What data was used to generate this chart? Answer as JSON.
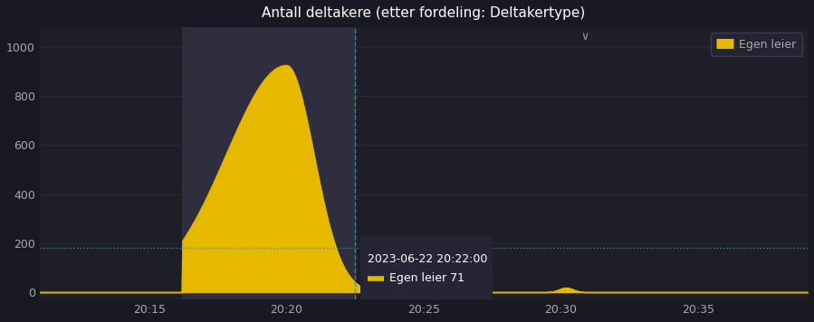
{
  "title": "Antall deltakere (etter fordeling: Deltakertype)",
  "background_color": "#191923",
  "plot_bg_color": "#1e1e28",
  "area_fill_color": "#e6b800",
  "area_line_color": "#e6b800",
  "highlight_rect_color": "#2e2e3e",
  "dashed_line_color": "#4a9090",
  "horizontal_line_color": "#4a9090",
  "horizontal_line_y": 180,
  "tooltip_bg": "#252535",
  "tooltip_text": "2023-06-22 20:22:00",
  "tooltip_value": "Egen leier 71",
  "legend_label": "Egen leier",
  "legend_color": "#e6b800",
  "yticks": [
    0,
    200,
    400,
    600,
    800,
    1000
  ],
  "xtick_labels": [
    "20:15",
    "20:20",
    "20:25",
    "20:30",
    "20:35"
  ],
  "xlim_min": -4,
  "xlim_max": 24,
  "ylim_min": -30,
  "ylim_max": 1080,
  "grid_color": "#2a2a38",
  "text_color": "#aaaaaa",
  "title_color": "#ffffff",
  "peak_x": 5.0,
  "peak_y": 925,
  "highlight_xmin": 1.2,
  "highlight_xmax": 7.5,
  "vline_x": 7.5,
  "small_bump_x": 15.2,
  "small_bump_y": 18
}
